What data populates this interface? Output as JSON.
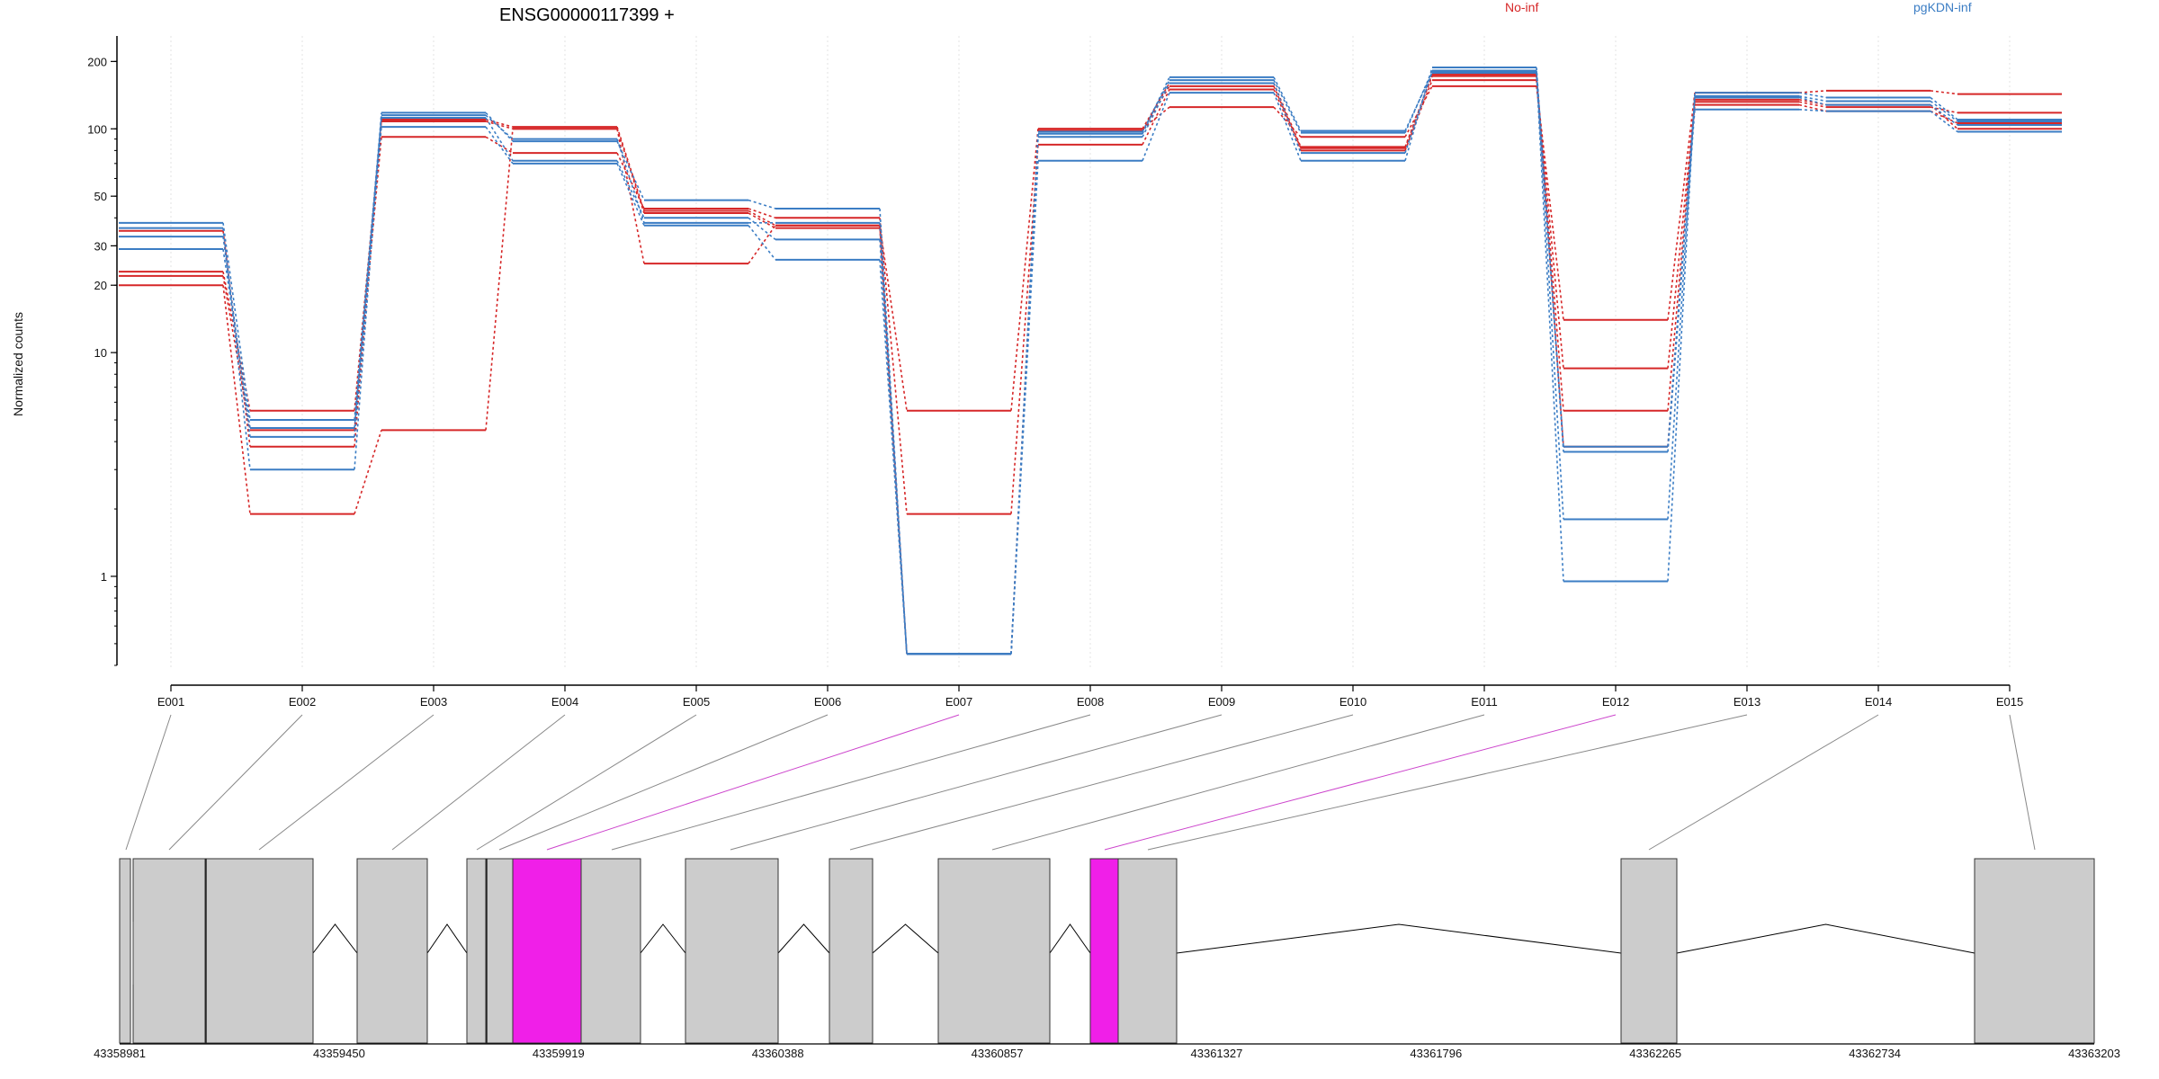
{
  "chart_data": {
    "type": "line",
    "title": "ENSG00000117399 +",
    "ylabel": "Normalized counts",
    "y_scale": "log",
    "ylim": [
      0.4,
      260
    ],
    "y_ticks": [
      1,
      10,
      20,
      30,
      50,
      100,
      200
    ],
    "grid": "vertical dotted at each exon",
    "categories": [
      "E001",
      "E002",
      "E003",
      "E004",
      "E005",
      "E006",
      "E007",
      "E008",
      "E009",
      "E010",
      "E011",
      "E012",
      "E013",
      "E014",
      "E015"
    ],
    "legend": [
      {
        "label": "No-inf",
        "color": "#d62728"
      },
      {
        "label": "pgKDN-inf",
        "color": "#3b7dc4"
      }
    ],
    "series": [
      {
        "group": "No-inf",
        "color": "#d62728",
        "values": [
          20,
          1.9,
          4.5,
          100,
          25,
          37,
          5.5,
          100,
          125,
          92,
          155,
          14,
          145,
          148,
          143
        ]
      },
      {
        "group": "No-inf",
        "color": "#d62728",
        "values": [
          22,
          4.5,
          92,
          78,
          44,
          40,
          1.9,
          85,
          150,
          80,
          165,
          8.5,
          132,
          125,
          118
        ]
      },
      {
        "group": "No-inf",
        "color": "#d62728",
        "values": [
          23,
          5.5,
          108,
          100,
          42,
          36,
          0.45,
          98,
          155,
          82,
          172,
          5.5,
          128,
          120,
          106
        ]
      },
      {
        "group": "No-inf",
        "color": "#d62728",
        "values": [
          35,
          3.8,
          110,
          102,
          43,
          37,
          0.45,
          100,
          160,
          83,
          175,
          3.8,
          135,
          128,
          100
        ]
      },
      {
        "group": "pgKDN-inf",
        "color": "#3b7dc4",
        "values": [
          38,
          5.0,
          115,
          90,
          38,
          38,
          0.45,
          95,
          170,
          98,
          178,
          0.95,
          145,
          138,
          110
        ]
      },
      {
        "group": "pgKDN-inf",
        "color": "#3b7dc4",
        "values": [
          36,
          3.0,
          118,
          88,
          48,
          44,
          0.45,
          97,
          165,
          96,
          182,
          1.8,
          140,
          133,
          108
        ]
      },
      {
        "group": "pgKDN-inf",
        "color": "#3b7dc4",
        "values": [
          33,
          4.2,
          102,
          70,
          37,
          26,
          0.45,
          72,
          145,
          72,
          188,
          3.6,
          122,
          120,
          97
        ]
      },
      {
        "group": "pgKDN-inf",
        "color": "#3b7dc4",
        "values": [
          29,
          4.6,
          112,
          72,
          40,
          32,
          0.45,
          92,
          160,
          78,
          180,
          3.8,
          138,
          128,
          104
        ]
      }
    ],
    "gene_model": {
      "coordinate_labels": [
        "43358981",
        "43359450",
        "43359919",
        "43360388",
        "43360857",
        "43361327",
        "43361796",
        "43362265",
        "43362734",
        "43363203"
      ],
      "exon_boxes": [
        {
          "exon": "E001",
          "highlighted": false
        },
        {
          "exon": "E002",
          "highlighted": false
        },
        {
          "exon": "E003",
          "highlighted": false
        },
        {
          "exon": "E004",
          "highlighted": false
        },
        {
          "exon": "E005",
          "highlighted": false
        },
        {
          "exon": "E006",
          "highlighted": false
        },
        {
          "exon": "E007",
          "highlighted": true
        },
        {
          "exon": "E008",
          "highlighted": false
        },
        {
          "exon": "E009",
          "highlighted": false
        },
        {
          "exon": "E010",
          "highlighted": false
        },
        {
          "exon": "E011",
          "highlighted": false
        },
        {
          "exon": "E012",
          "highlighted": true
        },
        {
          "exon": "E013",
          "highlighted": false
        },
        {
          "exon": "E014",
          "highlighted": false
        },
        {
          "exon": "E015",
          "highlighted": false
        }
      ],
      "exon_fill": "#cccccc",
      "highlight_fill": "#f01fe8"
    }
  }
}
